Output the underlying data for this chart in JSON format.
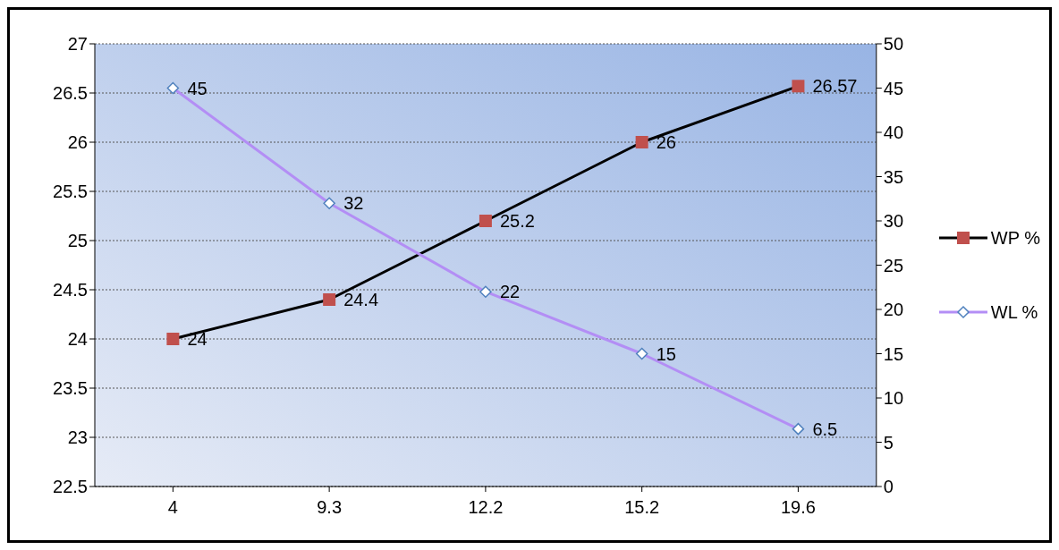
{
  "chart_data": {
    "type": "line",
    "categories": [
      "4",
      "9.3",
      "12.2",
      "15.2",
      "19.6"
    ],
    "series": [
      {
        "name": "WP %",
        "color": "#000000",
        "marker": "square",
        "values": [
          24,
          24.4,
          25.2,
          26,
          26.57
        ]
      },
      {
        "name": "WL %",
        "color": "#b38ef5",
        "marker": "diamond",
        "axis": "y2",
        "values": [
          45,
          32,
          22,
          15,
          6.5
        ]
      }
    ],
    "ylim": [
      22.5,
      27
    ],
    "yticks": [
      22.5,
      23,
      23.5,
      24,
      24.5,
      25,
      25.5,
      26,
      26.5,
      27
    ],
    "y2lim": [
      0,
      50
    ],
    "y2ticks": [
      0,
      5,
      10,
      15,
      20,
      25,
      30,
      35,
      40,
      45,
      50
    ],
    "grid": "y",
    "legend": "right",
    "data_labels": true,
    "line_style": "solid"
  }
}
